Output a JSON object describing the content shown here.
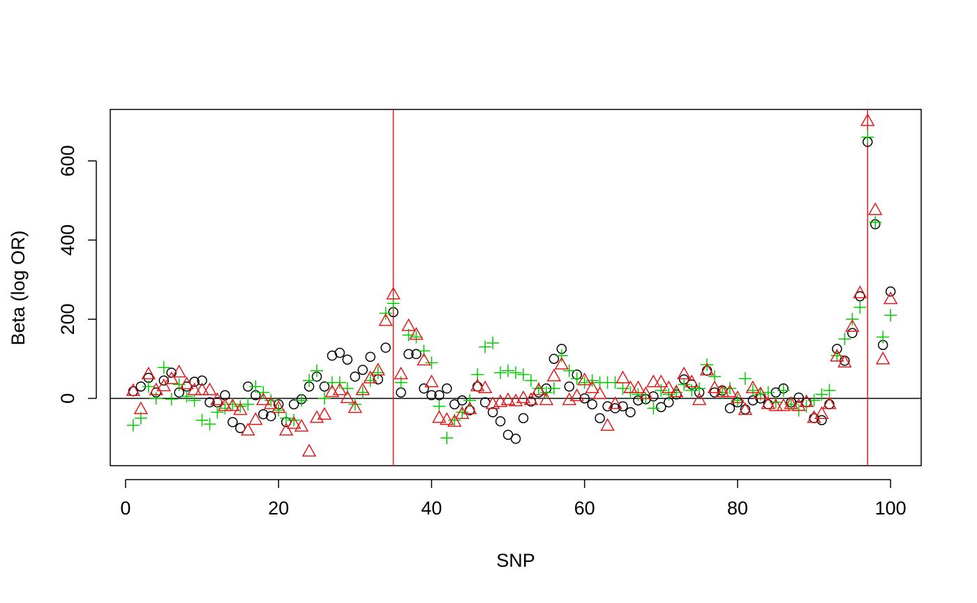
{
  "chart_data": {
    "type": "scatter",
    "xlabel": "SNP",
    "ylabel": "Beta (log OR)",
    "xlim": [
      -2,
      104
    ],
    "ylim": [
      -170,
      730
    ],
    "x_ticks": [
      0,
      20,
      40,
      60,
      80,
      100
    ],
    "y_ticks": [
      0,
      200,
      400,
      600
    ],
    "reference_lines": {
      "horizontal": {
        "y": 0,
        "color": "#000000"
      },
      "vertical": [
        {
          "x": 35,
          "color": "#e31a1c"
        },
        {
          "x": 97,
          "color": "#e31a1c"
        }
      ]
    },
    "grid": false,
    "legend": "none",
    "series": [
      {
        "marker": "circle",
        "color": "#000000",
        "x": [
          1,
          2,
          3,
          4,
          5,
          6,
          7,
          8,
          9,
          10,
          11,
          12,
          13,
          14,
          15,
          16,
          17,
          18,
          19,
          20,
          21,
          22,
          23,
          24,
          25,
          26,
          27,
          28,
          29,
          30,
          31,
          32,
          33,
          34,
          35,
          36,
          37,
          38,
          39,
          40,
          41,
          42,
          43,
          44,
          45,
          46,
          47,
          48,
          49,
          50,
          51,
          52,
          53,
          54,
          55,
          56,
          57,
          58,
          59,
          60,
          61,
          62,
          63,
          64,
          65,
          66,
          67,
          68,
          69,
          70,
          71,
          72,
          73,
          74,
          75,
          76,
          77,
          78,
          79,
          80,
          81,
          82,
          83,
          84,
          85,
          86,
          87,
          88,
          89,
          90,
          91,
          92,
          93,
          94,
          95,
          96,
          97,
          98,
          99,
          100
        ],
        "y": [
          18,
          30,
          52,
          15,
          45,
          65,
          15,
          30,
          42,
          45,
          -10,
          -10,
          8,
          -60,
          -75,
          30,
          8,
          -40,
          -45,
          -15,
          -60,
          -15,
          -2,
          30,
          55,
          30,
          108,
          115,
          98,
          55,
          72,
          105,
          48,
          128,
          218,
          15,
          112,
          112,
          25,
          8,
          8,
          25,
          -15,
          -5,
          -30,
          30,
          -10,
          -35,
          -58,
          -92,
          -102,
          -50,
          -8,
          15,
          25,
          100,
          125,
          30,
          60,
          0,
          -15,
          -50,
          -20,
          -25,
          -20,
          -35,
          -5,
          -2,
          5,
          -22,
          -10,
          10,
          48,
          35,
          15,
          70,
          15,
          20,
          -25,
          -10,
          -28,
          -5,
          0,
          -15,
          15,
          25,
          -10,
          2,
          -10,
          -50,
          -55,
          -15,
          125,
          95,
          165,
          258,
          648,
          440,
          135,
          270
        ]
      },
      {
        "marker": "plus",
        "color": "#00cc00",
        "x": [
          1,
          2,
          3,
          4,
          5,
          6,
          7,
          8,
          9,
          10,
          11,
          12,
          13,
          14,
          15,
          16,
          17,
          18,
          19,
          20,
          21,
          22,
          23,
          24,
          25,
          26,
          27,
          28,
          29,
          30,
          31,
          32,
          33,
          34,
          35,
          36,
          37,
          38,
          39,
          40,
          41,
          42,
          43,
          44,
          45,
          46,
          47,
          48,
          49,
          50,
          51,
          52,
          53,
          54,
          55,
          56,
          57,
          58,
          59,
          60,
          61,
          62,
          63,
          64,
          65,
          66,
          67,
          68,
          69,
          70,
          71,
          72,
          73,
          74,
          75,
          76,
          77,
          78,
          79,
          80,
          81,
          82,
          83,
          84,
          85,
          86,
          87,
          88,
          89,
          90,
          91,
          92,
          93,
          94,
          95,
          96,
          97,
          98,
          99,
          100
        ],
        "y": [
          -68,
          -50,
          30,
          0,
          78,
          -2,
          35,
          5,
          -5,
          -55,
          -65,
          -35,
          -25,
          -15,
          -20,
          -15,
          30,
          15,
          -5,
          -30,
          -50,
          -55,
          -5,
          45,
          70,
          0,
          40,
          40,
          25,
          -15,
          15,
          45,
          65,
          215,
          240,
          40,
          160,
          155,
          120,
          90,
          -20,
          -100,
          -55,
          -35,
          -5,
          60,
          130,
          140,
          65,
          70,
          65,
          60,
          45,
          25,
          15,
          25,
          108,
          70,
          50,
          40,
          45,
          40,
          40,
          40,
          25,
          15,
          10,
          0,
          -25,
          20,
          10,
          15,
          35,
          20,
          25,
          85,
          55,
          15,
          25,
          -5,
          50,
          20,
          10,
          15,
          -10,
          20,
          -15,
          -30,
          -20,
          -5,
          10,
          20,
          108,
          150,
          200,
          230,
          660,
          445,
          155,
          210
        ]
      },
      {
        "marker": "triangle",
        "color": "#e31a1c",
        "x": [
          1,
          2,
          3,
          4,
          5,
          6,
          7,
          8,
          9,
          10,
          11,
          12,
          13,
          14,
          15,
          16,
          17,
          18,
          19,
          20,
          21,
          22,
          23,
          24,
          25,
          26,
          27,
          28,
          29,
          30,
          31,
          32,
          33,
          34,
          35,
          36,
          37,
          38,
          39,
          40,
          41,
          42,
          43,
          44,
          45,
          46,
          47,
          48,
          49,
          50,
          51,
          52,
          53,
          54,
          55,
          56,
          57,
          58,
          59,
          60,
          61,
          62,
          63,
          64,
          65,
          66,
          67,
          68,
          69,
          70,
          71,
          72,
          73,
          74,
          75,
          76,
          77,
          78,
          79,
          80,
          81,
          82,
          83,
          84,
          85,
          86,
          87,
          88,
          89,
          90,
          91,
          92,
          93,
          94,
          95,
          96,
          97,
          98,
          99,
          100
        ],
        "y": [
          18,
          -28,
          60,
          20,
          30,
          48,
          65,
          35,
          20,
          20,
          20,
          -5,
          -20,
          -20,
          -30,
          -82,
          -55,
          -5,
          -15,
          -25,
          -82,
          -65,
          -72,
          -135,
          -50,
          -42,
          15,
          20,
          0,
          -25,
          20,
          50,
          70,
          195,
          262,
          60,
          182,
          160,
          95,
          40,
          -50,
          -55,
          -60,
          -40,
          -28,
          30,
          25,
          -15,
          -10,
          -5,
          -8,
          0,
          -5,
          20,
          -5,
          55,
          85,
          -5,
          5,
          45,
          25,
          10,
          -70,
          -15,
          50,
          25,
          25,
          10,
          40,
          40,
          25,
          15,
          60,
          40,
          -5,
          70,
          25,
          15,
          15,
          0,
          -30,
          25,
          10,
          -15,
          -20,
          -20,
          -15,
          -20,
          -10,
          -50,
          -40,
          -15,
          105,
          90,
          180,
          265,
          700,
          475,
          98,
          250
        ]
      }
    ]
  }
}
